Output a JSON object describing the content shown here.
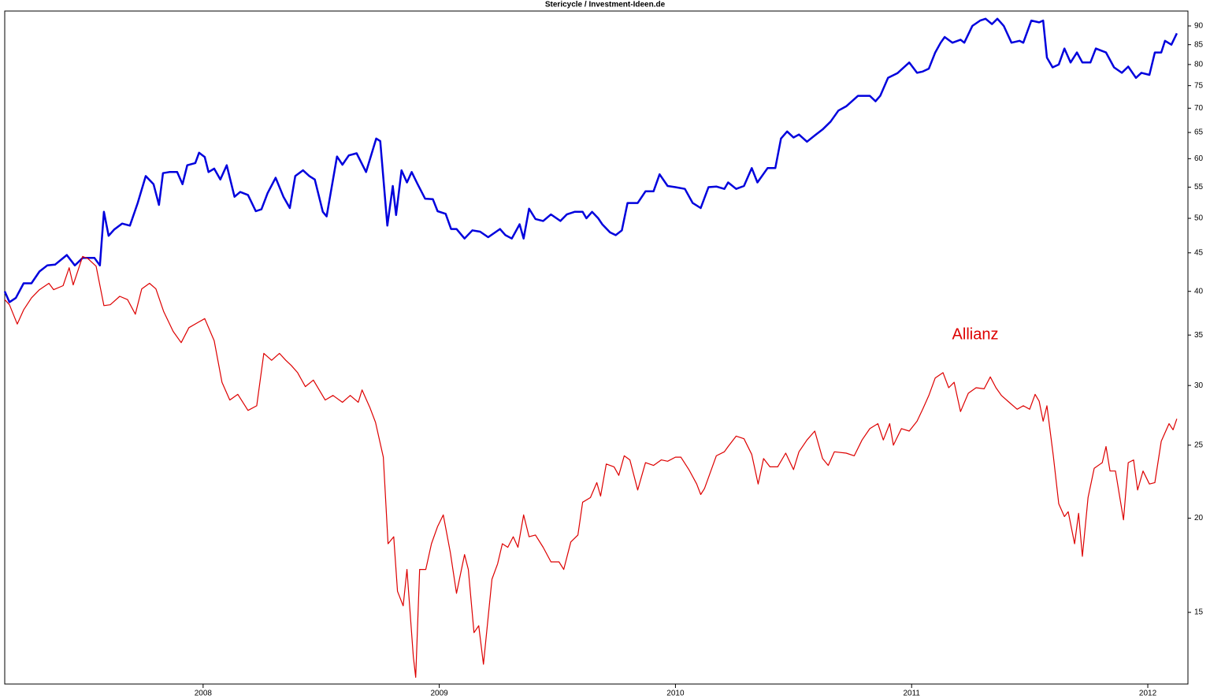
{
  "chart_data": {
    "type": "line",
    "title": "Stericycle /  Investment-Ideen.de",
    "ylog": true,
    "grid": false,
    "xlim": [
      2007.16,
      2012.17
    ],
    "xticks": [
      2008,
      2009,
      2010,
      2011,
      2012
    ],
    "ylim": [
      12.05,
      94.2
    ],
    "yticks": [
      15,
      20,
      25,
      30,
      35,
      40,
      45,
      50,
      55,
      60,
      65,
      70,
      75,
      80,
      85,
      90
    ],
    "series": [
      {
        "color": "#0000dd",
        "x": [
          2007.16,
          2007.18,
          2007.207,
          2007.24,
          2007.273,
          2007.307,
          2007.34,
          2007.373,
          2007.423,
          2007.457,
          2007.49,
          2007.54,
          2007.563,
          2007.58,
          2007.6,
          2007.623,
          2007.657,
          2007.69,
          2007.723,
          2007.757,
          2007.79,
          2007.813,
          2007.83,
          2007.857,
          2007.89,
          2007.913,
          2007.933,
          2007.967,
          2007.983,
          2008.007,
          2008.023,
          2008.047,
          2008.073,
          2008.1,
          2008.133,
          2008.157,
          2008.19,
          2008.223,
          2008.247,
          2008.273,
          2008.307,
          2008.34,
          2008.367,
          2008.39,
          2008.423,
          2008.45,
          2008.473,
          2008.507,
          2008.523,
          2008.567,
          2008.59,
          2008.617,
          2008.65,
          2008.69,
          2008.733,
          2008.75,
          2008.78,
          2008.803,
          2008.817,
          2008.84,
          2008.863,
          2008.883,
          2008.907,
          2008.94,
          2008.973,
          2008.993,
          2009.027,
          2009.05,
          2009.073,
          2009.107,
          2009.14,
          2009.173,
          2009.207,
          2009.257,
          2009.28,
          2009.307,
          2009.34,
          2009.357,
          2009.38,
          2009.407,
          2009.44,
          2009.473,
          2009.513,
          2009.54,
          2009.573,
          2009.607,
          2009.623,
          2009.647,
          2009.673,
          2009.69,
          2009.723,
          2009.747,
          2009.773,
          2009.797,
          2009.84,
          2009.873,
          2009.907,
          2009.933,
          2009.967,
          2010.0,
          2010.04,
          2010.073,
          2010.107,
          2010.14,
          2010.173,
          2010.207,
          2010.223,
          2010.257,
          2010.29,
          2010.323,
          2010.347,
          2010.39,
          2010.423,
          2010.447,
          2010.473,
          2010.5,
          2010.523,
          2010.557,
          2010.59,
          2010.623,
          2010.657,
          2010.69,
          2010.723,
          2010.773,
          2010.823,
          2010.847,
          2010.867,
          2010.9,
          2010.94,
          2010.99,
          2011.023,
          2011.047,
          2011.073,
          2011.1,
          2011.123,
          2011.14,
          2011.173,
          2011.207,
          2011.223,
          2011.257,
          2011.29,
          2011.313,
          2011.34,
          2011.363,
          2011.39,
          2011.423,
          2011.457,
          2011.473,
          2011.507,
          2011.54,
          2011.557,
          2011.573,
          2011.597,
          2011.623,
          2011.647,
          2011.673,
          2011.7,
          2011.723,
          2011.757,
          2011.78,
          2011.823,
          2011.857,
          2011.89,
          2011.917,
          2011.95,
          2011.973,
          2012.007,
          2012.03,
          2012.057,
          2012.073,
          2012.1,
          2012.123
        ],
        "values": [
          40,
          38.7,
          39.2,
          41,
          41,
          42.5,
          43.3,
          43.4,
          44.7,
          43.3,
          44.3,
          44.3,
          43.3,
          51,
          47.4,
          48.3,
          49.2,
          48.9,
          52.4,
          56.9,
          55.5,
          52.1,
          57.4,
          57.6,
          57.6,
          55.5,
          58.8,
          59.2,
          61.1,
          60.3,
          57.6,
          58.2,
          56.3,
          58.8,
          53.4,
          54.2,
          53.7,
          51.1,
          51.4,
          54,
          56.6,
          53.4,
          51.6,
          56.9,
          57.9,
          56.9,
          56.3,
          51,
          50.3,
          60.4,
          58.9,
          60.6,
          61,
          57.6,
          63.8,
          63.3,
          48.9,
          55.2,
          50.5,
          57.9,
          55.8,
          57.6,
          55.6,
          53.1,
          53,
          51.1,
          50.7,
          48.4,
          48.4,
          47,
          48.2,
          48,
          47.2,
          48.4,
          47.5,
          47,
          49.1,
          47,
          51.5,
          49.9,
          49.6,
          50.6,
          49.6,
          50.6,
          51,
          51,
          50,
          51,
          50,
          49.1,
          47.9,
          47.5,
          48.2,
          52.4,
          52.4,
          54.3,
          54.3,
          57.2,
          55.2,
          55,
          54.7,
          52.4,
          51.6,
          55,
          55.1,
          54.7,
          55.8,
          54.7,
          55.2,
          58.3,
          55.8,
          58.3,
          58.3,
          63.8,
          65.2,
          64,
          64.6,
          63.2,
          64.4,
          65.6,
          67.2,
          69.5,
          70.4,
          72.7,
          72.7,
          71.5,
          72.7,
          76.8,
          77.9,
          80.5,
          78,
          78.3,
          79,
          83,
          85.5,
          87,
          85.5,
          86.3,
          85.5,
          90,
          91.5,
          92,
          90.5,
          92,
          90,
          85.5,
          86,
          85.5,
          91.5,
          91,
          91.5,
          81.7,
          79.3,
          80,
          84,
          80.5,
          83,
          80.5,
          80.5,
          84,
          83,
          79.3,
          78,
          79.5,
          76.8,
          78,
          77.5,
          83,
          83,
          86,
          85,
          88
        ]
      },
      {
        "name": "Allianz",
        "color": "#dd0000",
        "x": [
          2007.16,
          2007.18,
          2007.213,
          2007.24,
          2007.273,
          2007.307,
          2007.347,
          2007.367,
          2007.407,
          2007.433,
          2007.45,
          2007.49,
          2007.513,
          2007.547,
          2007.58,
          2007.607,
          2007.647,
          2007.68,
          2007.713,
          2007.74,
          2007.773,
          2007.8,
          2007.833,
          2007.873,
          2007.907,
          2007.94,
          2007.98,
          2008.007,
          2008.047,
          2008.08,
          2008.113,
          2008.147,
          2008.19,
          2008.227,
          2008.257,
          2008.29,
          2008.323,
          2008.35,
          2008.373,
          2008.4,
          2008.433,
          2008.467,
          2008.517,
          2008.55,
          2008.59,
          2008.623,
          2008.657,
          2008.673,
          2008.707,
          2008.73,
          2008.763,
          2008.783,
          2008.807,
          2008.823,
          2008.847,
          2008.863,
          2008.89,
          2008.9,
          2008.917,
          2008.943,
          2008.967,
          2008.993,
          2009.017,
          2009.047,
          2009.073,
          2009.107,
          2009.123,
          2009.147,
          2009.167,
          2009.187,
          2009.223,
          2009.247,
          2009.267,
          2009.29,
          2009.313,
          2009.333,
          2009.357,
          2009.38,
          2009.407,
          2009.44,
          2009.473,
          2009.507,
          2009.527,
          2009.557,
          2009.587,
          2009.607,
          2009.64,
          2009.667,
          2009.683,
          2009.707,
          2009.74,
          2009.76,
          2009.783,
          2009.807,
          2009.84,
          2009.873,
          2009.907,
          2009.94,
          2009.967,
          2010.0,
          2010.023,
          2010.057,
          2010.09,
          2010.107,
          2010.123,
          2010.173,
          2010.207,
          2010.223,
          2010.257,
          2010.29,
          2010.323,
          2010.35,
          2010.373,
          2010.4,
          2010.433,
          2010.467,
          2010.5,
          2010.523,
          2010.557,
          2010.59,
          2010.623,
          2010.647,
          2010.673,
          2010.723,
          2010.757,
          2010.79,
          2010.823,
          2010.857,
          2010.88,
          2010.907,
          2010.923,
          2010.957,
          2010.99,
          2011.023,
          2011.047,
          2011.073,
          2011.1,
          2011.133,
          2011.157,
          2011.18,
          2011.207,
          2011.24,
          2011.273,
          2011.307,
          2011.333,
          2011.357,
          2011.38,
          2011.407,
          2011.447,
          2011.473,
          2011.5,
          2011.523,
          2011.54,
          2011.557,
          2011.573,
          2011.6,
          2011.623,
          2011.647,
          2011.663,
          2011.69,
          2011.707,
          2011.723,
          2011.747,
          2011.773,
          2011.807,
          2011.823,
          2011.84,
          2011.863,
          2011.897,
          2011.917,
          2011.94,
          2011.957,
          2011.98,
          2012.007,
          2012.03,
          2012.057,
          2012.09,
          2012.107,
          2012.123
        ],
        "values": [
          39,
          38.4,
          36.2,
          37.8,
          39.2,
          40.2,
          41,
          40.2,
          40.7,
          43,
          40.8,
          44.5,
          44.2,
          43.2,
          38.3,
          38.4,
          39.4,
          39,
          37.3,
          40.3,
          41,
          40.3,
          37.6,
          35.4,
          34.2,
          35.8,
          36.4,
          36.8,
          34.4,
          30.3,
          28.7,
          29.2,
          27.8,
          28.2,
          33.1,
          32.4,
          33.1,
          32.4,
          31.9,
          31.2,
          29.9,
          30.5,
          28.7,
          29.1,
          28.5,
          29.1,
          28.5,
          29.6,
          28,
          26.8,
          24.1,
          18.5,
          18.9,
          16,
          15.3,
          17.1,
          13.1,
          12.3,
          17.1,
          17.1,
          18.5,
          19.5,
          20.2,
          18,
          15.9,
          17.9,
          17.1,
          14.1,
          14.4,
          12.8,
          16.6,
          17.4,
          18.5,
          18.3,
          18.9,
          18.3,
          20.2,
          18.9,
          19,
          18.3,
          17.5,
          17.5,
          17.1,
          18.6,
          19,
          21,
          21.3,
          22.3,
          21.4,
          23.6,
          23.4,
          22.8,
          24.2,
          23.9,
          21.8,
          23.7,
          23.5,
          23.9,
          23.8,
          24.1,
          24.1,
          23.2,
          22.2,
          21.5,
          21.9,
          24.2,
          24.5,
          24.9,
          25.7,
          25.5,
          24.3,
          22.2,
          24,
          23.4,
          23.4,
          24.4,
          23.2,
          24.5,
          25.4,
          26.1,
          24,
          23.5,
          24.5,
          24.4,
          24.2,
          25.4,
          26.3,
          26.7,
          25.4,
          26.7,
          25,
          26.3,
          26.1,
          26.9,
          27.9,
          29.1,
          30.7,
          31.2,
          29.8,
          30.3,
          27.7,
          29.3,
          29.8,
          29.7,
          30.8,
          29.8,
          29.1,
          28.6,
          27.9,
          28.2,
          27.9,
          29.2,
          28.6,
          26.9,
          28.2,
          24.2,
          20.9,
          20.1,
          20.4,
          18.5,
          20.3,
          17.8,
          21.3,
          23.3,
          23.7,
          24.9,
          23.1,
          23.1,
          19.9,
          23.7,
          23.9,
          21.8,
          23.1,
          22.2,
          22.3,
          25.3,
          26.7,
          26.2,
          27.1
        ]
      }
    ]
  }
}
